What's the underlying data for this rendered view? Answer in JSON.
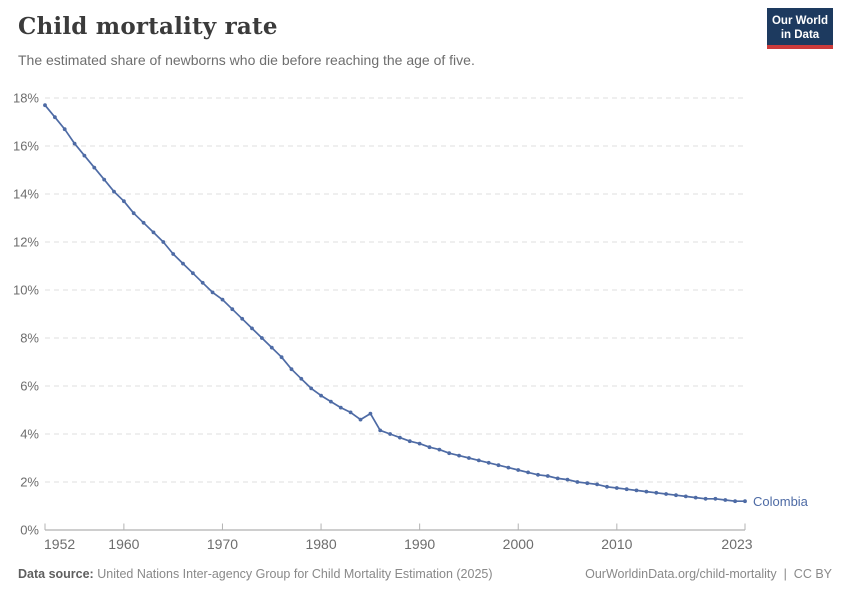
{
  "header": {
    "title": "Child mortality rate",
    "subtitle": "The estimated share of newborns who die before reaching the age of five.",
    "logo": {
      "line1": "Our World",
      "line2": "in Data"
    }
  },
  "colors": {
    "line": "#4e6ba5",
    "logo_bg": "#1d3a5f",
    "logo_accent": "#cc3b3b",
    "gridline": "#dfdfdf",
    "axis_line": "#9c9c9c",
    "tick_mark": "#b3b3b3",
    "tick_text": "#6d6d6d"
  },
  "chart_data": {
    "type": "line",
    "title": "Child mortality rate",
    "entity": "Colombia",
    "unit": "%",
    "years": [
      1952,
      1953,
      1954,
      1955,
      1956,
      1957,
      1958,
      1959,
      1960,
      1961,
      1962,
      1963,
      1964,
      1965,
      1966,
      1967,
      1968,
      1969,
      1970,
      1971,
      1972,
      1973,
      1974,
      1975,
      1976,
      1977,
      1978,
      1979,
      1980,
      1981,
      1982,
      1983,
      1984,
      1985,
      1986,
      1987,
      1988,
      1989,
      1990,
      1991,
      1992,
      1993,
      1994,
      1995,
      1996,
      1997,
      1998,
      1999,
      2000,
      2001,
      2002,
      2003,
      2004,
      2005,
      2006,
      2007,
      2008,
      2009,
      2010,
      2011,
      2012,
      2013,
      2014,
      2015,
      2016,
      2017,
      2018,
      2019,
      2020,
      2021,
      2022,
      2023
    ],
    "series": [
      {
        "name": "Colombia",
        "color": "#4e6ba5",
        "values": [
          17.7,
          17.2,
          16.7,
          16.1,
          15.6,
          15.1,
          14.6,
          14.1,
          13.7,
          13.2,
          12.8,
          12.4,
          12.0,
          11.5,
          11.1,
          10.7,
          10.3,
          9.9,
          9.6,
          9.2,
          8.8,
          8.4,
          8.0,
          7.6,
          7.2,
          6.7,
          6.3,
          5.9,
          5.6,
          5.35,
          5.1,
          4.9,
          4.6,
          4.85,
          4.15,
          4.0,
          3.85,
          3.7,
          3.6,
          3.45,
          3.35,
          3.2,
          3.1,
          3.0,
          2.9,
          2.8,
          2.7,
          2.6,
          2.5,
          2.4,
          2.3,
          2.25,
          2.15,
          2.1,
          2.0,
          1.95,
          1.9,
          1.8,
          1.75,
          1.7,
          1.65,
          1.6,
          1.55,
          1.5,
          1.45,
          1.4,
          1.35,
          1.3,
          1.3,
          1.25,
          1.2,
          1.2
        ]
      }
    ],
    "ylim": [
      0,
      18
    ],
    "ytick_step": 2,
    "ytick_suffix": "%",
    "xticks": [
      1952,
      1960,
      1970,
      1980,
      1990,
      2000,
      2010,
      2023
    ],
    "grid": "horizontal-dashed",
    "legend_position": "line-end-label",
    "xlabel": "",
    "ylabel": ""
  },
  "footer": {
    "datasource_label": "Data source:",
    "datasource_text": "United Nations Inter-agency Group for Child Mortality Estimation (2025)",
    "url": "OurWorldinData.org/child-mortality",
    "separator": " | ",
    "license": "CC BY"
  }
}
